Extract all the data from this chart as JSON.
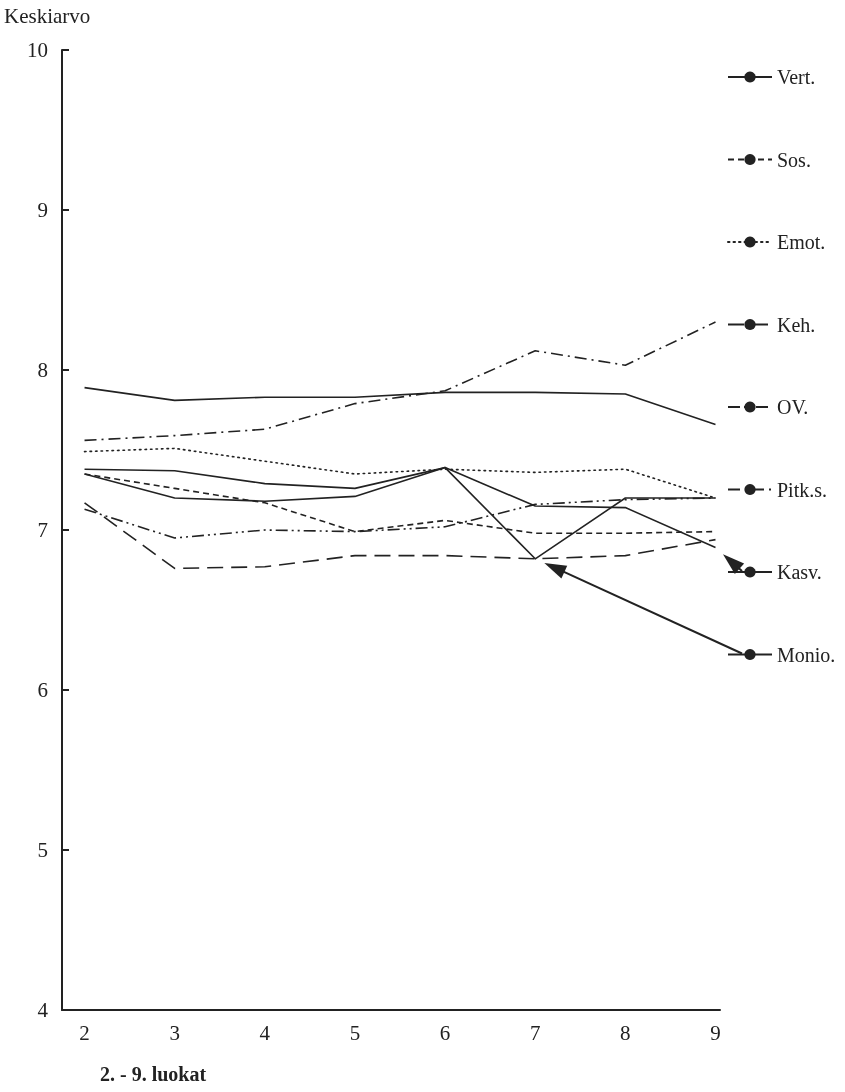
{
  "chart_data": {
    "type": "line",
    "ylabel": "Keskiarvo",
    "xlabel": "2. - 9. luokat",
    "x": [
      2,
      3,
      4,
      5,
      6,
      7,
      8,
      9
    ],
    "xlim": [
      1.75,
      9.05
    ],
    "xticks": [
      2,
      3,
      4,
      5,
      6,
      7,
      8,
      9
    ],
    "ylim": [
      4,
      10
    ],
    "yticks": [
      4,
      5,
      6,
      7,
      8,
      9,
      10
    ],
    "grid": false,
    "legend": "right",
    "marker": "none",
    "series": [
      {
        "name": "Vert.",
        "color": "#222222",
        "line_style": "solid",
        "values": [
          7.89,
          7.81,
          7.83,
          7.83,
          7.86,
          7.86,
          7.85,
          7.66
        ]
      },
      {
        "name": "Sos.",
        "color": "#222222",
        "line_style": "dashed",
        "values": [
          7.35,
          7.26,
          7.17,
          6.99,
          7.06,
          6.98,
          6.98,
          6.99
        ]
      },
      {
        "name": "Emot.",
        "color": "#222222",
        "line_style": "dotted",
        "values": [
          7.49,
          7.51,
          7.43,
          7.35,
          7.38,
          7.36,
          7.38,
          7.2
        ]
      },
      {
        "name": "Keh.",
        "color": "#222222",
        "line_style": "longdash",
        "values": [
          7.17,
          6.76,
          6.77,
          6.84,
          6.84,
          6.82,
          6.84,
          6.94
        ]
      },
      {
        "name": "OV.",
        "color": "#222222",
        "line_style": "dashdotdot",
        "values": [
          7.13,
          6.95,
          7.0,
          6.99,
          7.02,
          7.16,
          7.19,
          7.2
        ]
      },
      {
        "name": "Pitk.s.",
        "color": "#222222",
        "line_style": "dashdot",
        "values": [
          7.56,
          7.59,
          7.63,
          7.79,
          7.87,
          8.12,
          8.03,
          8.3
        ]
      },
      {
        "name": "Kasv.",
        "color": "#222222",
        "line_style": "solid",
        "values": [
          7.38,
          7.37,
          7.29,
          7.26,
          7.39,
          7.15,
          7.14,
          6.89
        ]
      },
      {
        "name": "Monio.",
        "color": "#222222",
        "line_style": "solid",
        "values": [
          7.35,
          7.2,
          7.18,
          7.21,
          7.39,
          6.82,
          7.2,
          7.2
        ]
      }
    ]
  }
}
